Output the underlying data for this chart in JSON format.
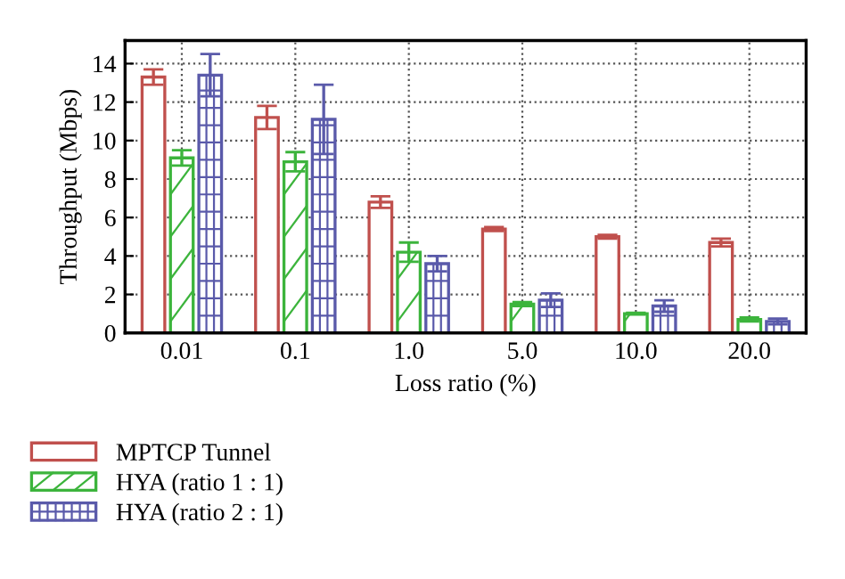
{
  "chart_data": {
    "type": "bar",
    "xlabel": "Loss ratio (%)",
    "ylabel": "Throughput (Mbps)",
    "categories": [
      "0.01",
      "0.1",
      "1.0",
      "5.0",
      "10.0",
      "20.0"
    ],
    "series": [
      {
        "name": "MPTCP Tunnel",
        "color": "#c0504d",
        "values": [
          13.3,
          11.2,
          6.8,
          5.4,
          5.0,
          4.7
        ],
        "errors": [
          0.4,
          0.6,
          0.3,
          0.1,
          0.1,
          0.2
        ]
      },
      {
        "name": "HYA (ratio 1 : 1)",
        "color": "#3cb43c",
        "values": [
          9.1,
          8.9,
          4.2,
          1.5,
          1.0,
          0.7
        ],
        "errors": [
          0.4,
          0.5,
          0.5,
          0.1,
          0.05,
          0.1
        ]
      },
      {
        "name": "HYA (ratio 2 : 1)",
        "color": "#5a5aaa",
        "values": [
          13.4,
          11.1,
          3.6,
          1.7,
          1.4,
          0.6
        ],
        "errors": [
          1.1,
          1.8,
          0.4,
          0.35,
          0.3,
          0.15
        ]
      }
    ],
    "ylim": [
      0,
      15.2
    ],
    "yticks": [
      0,
      2,
      4,
      6,
      8,
      10,
      12,
      14
    ],
    "grid": true,
    "line_style": "dotted",
    "legend": "bottom left"
  }
}
